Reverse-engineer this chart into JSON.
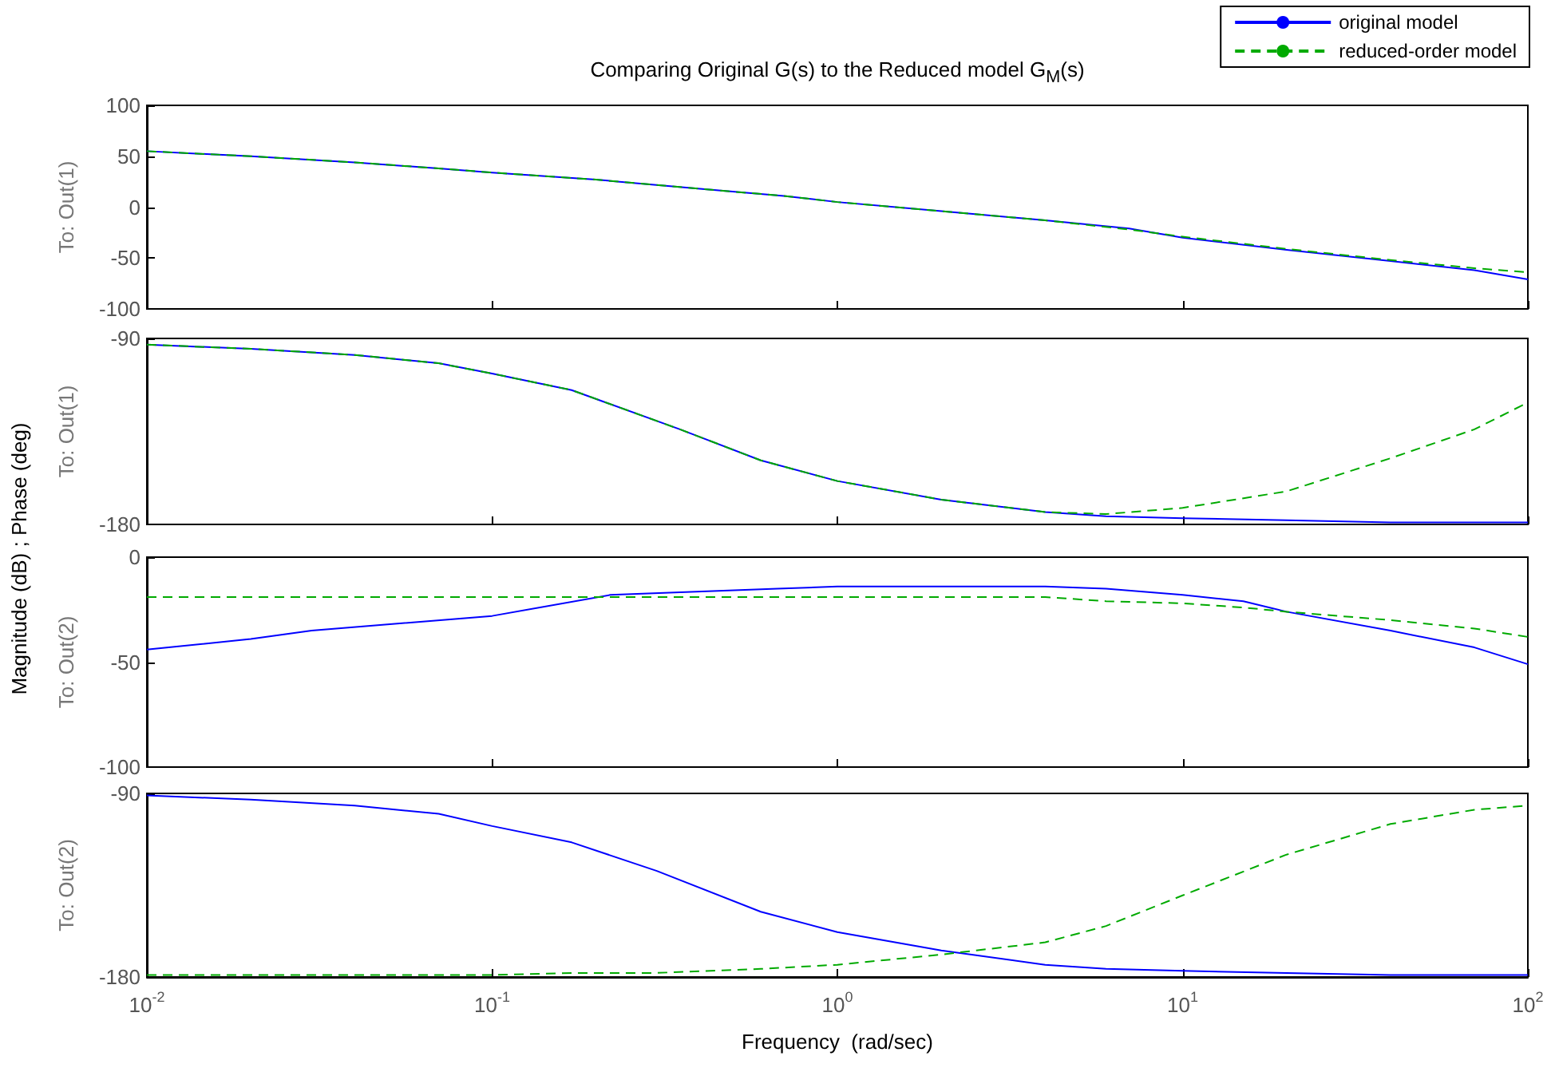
{
  "chart_data": [
    {
      "type": "line",
      "title": "Comparing Original G(s) to the Reduced model G$_{M}$(s)",
      "ylabel": "To: Out(1)",
      "annotations": [
        "Magnitude (dB) ; Phase (deg)"
      ],
      "log": "x",
      "grid": false,
      "legend": "top right",
      "tick_labels": "y",
      "marker": "none",
      "xlim": [
        0.01,
        100
      ],
      "ylim": [
        -100,
        100
      ],
      "yticks": [
        -100,
        -50,
        0,
        50,
        100
      ],
      "series": [
        {
          "name": "original model",
          "color": "#0000ff",
          "line_style": "solid",
          "x": [
            0.01,
            0.02,
            0.04,
            0.07,
            0.1,
            0.2,
            0.4,
            0.7,
            1,
            2,
            4,
            7,
            10,
            20,
            40,
            70,
            100
          ],
          "values": [
            55,
            50,
            44,
            38,
            34,
            27,
            18,
            11,
            5,
            -4,
            -13,
            -21,
            -30,
            -42,
            -53,
            -62,
            -71
          ]
        },
        {
          "name": "reduced-order model",
          "color": "#00aa00",
          "line_style": "dashed",
          "x": [
            0.01,
            0.02,
            0.04,
            0.07,
            0.1,
            0.2,
            0.4,
            0.7,
            1,
            2,
            4,
            7,
            10,
            20,
            40,
            70,
            100
          ],
          "values": [
            55,
            50,
            44,
            38,
            34,
            27,
            18,
            11,
            5,
            -4,
            -13,
            -22,
            -29,
            -41,
            -52,
            -60,
            -64
          ]
        }
      ]
    },
    {
      "type": "line",
      "ylabel": "To: Out(1)",
      "log": "x",
      "grid": false,
      "tick_labels": "y",
      "marker": "none",
      "xlim": [
        0.01,
        100
      ],
      "ylim": [
        -180,
        -90
      ],
      "yticks": [
        -180,
        -90
      ],
      "series": [
        {
          "color": "#0000ff",
          "line_style": "solid",
          "x": [
            0.01,
            0.02,
            0.04,
            0.07,
            0.1,
            0.17,
            0.35,
            0.6,
            1,
            2,
            4,
            6,
            10,
            20,
            40,
            70,
            100
          ],
          "values": [
            -93,
            -95,
            -98,
            -102,
            -107,
            -115,
            -134,
            -149,
            -159,
            -168,
            -174,
            -176,
            -177,
            -178,
            -179,
            -179,
            -179
          ]
        },
        {
          "color": "#00aa00",
          "line_style": "dashed",
          "x": [
            0.01,
            0.02,
            0.04,
            0.07,
            0.1,
            0.17,
            0.35,
            0.6,
            1,
            2,
            4,
            6,
            10,
            20,
            40,
            70,
            100
          ],
          "values": [
            -93,
            -95,
            -98,
            -102,
            -107,
            -115,
            -134,
            -149,
            -159,
            -168,
            -174,
            -175,
            -172,
            -164,
            -148,
            -134,
            -121
          ]
        }
      ]
    },
    {
      "type": "line",
      "ylabel": "To: Out(2)",
      "log": "x",
      "grid": false,
      "tick_labels": "y",
      "marker": "none",
      "xlim": [
        0.01,
        100
      ],
      "ylim": [
        -100,
        0
      ],
      "yticks": [
        -100,
        -50,
        0
      ],
      "series": [
        {
          "color": "#0000ff",
          "line_style": "solid",
          "x": [
            0.01,
            0.02,
            0.03,
            0.1,
            0.22,
            0.67,
            1,
            4,
            6,
            10,
            15,
            20,
            40,
            70,
            100
          ],
          "values": [
            -44,
            -39,
            -35,
            -28,
            -18,
            -15,
            -14,
            -14,
            -15,
            -18,
            -21,
            -26,
            -35,
            -43,
            -51
          ]
        },
        {
          "color": "#00aa00",
          "line_style": "dashed",
          "x": [
            0.01,
            0.02,
            0.03,
            0.1,
            0.22,
            0.67,
            1,
            4,
            6,
            10,
            15,
            20,
            40,
            70,
            100
          ],
          "values": [
            -19,
            -19,
            -19,
            -19,
            -19,
            -19,
            -19,
            -19,
            -21,
            -22,
            -24,
            -26,
            -30,
            -34,
            -38
          ]
        }
      ]
    },
    {
      "type": "line",
      "ylabel": "To: Out(2)",
      "xlabel": "Frequency  (rad/sec)",
      "log": "x",
      "grid": false,
      "marker": "none",
      "xlim": [
        0.01,
        100
      ],
      "ylim": [
        -180,
        -90
      ],
      "yticks": [
        -180,
        -90
      ],
      "xticks": [
        {
          "value": 0.01,
          "label": "10$^{-2}$"
        },
        {
          "value": 0.1,
          "label": "10$^{-1}$"
        },
        {
          "value": 1,
          "label": "10$^{0}$"
        },
        {
          "value": 10,
          "label": "10$^{1}$"
        },
        {
          "value": 100,
          "label": "10$^{2}$"
        }
      ],
      "series": [
        {
          "color": "#0000ff",
          "line_style": "solid",
          "x": [
            0.01,
            0.02,
            0.04,
            0.07,
            0.1,
            0.17,
            0.3,
            0.6,
            1,
            2,
            4,
            6,
            10,
            20,
            40,
            70,
            100
          ],
          "values": [
            -91,
            -93,
            -96,
            -100,
            -106,
            -114,
            -128,
            -148,
            -158,
            -167,
            -174,
            -176,
            -177,
            -178,
            -179,
            -179,
            -179
          ]
        },
        {
          "color": "#00aa00",
          "line_style": "dashed",
          "x": [
            0.01,
            0.02,
            0.04,
            0.07,
            0.1,
            0.17,
            0.3,
            0.6,
            1,
            2,
            4,
            6,
            10,
            20,
            40,
            70,
            100
          ],
          "values": [
            -179,
            -179,
            -179,
            -179,
            -179,
            -178,
            -178,
            -176,
            -174,
            -169,
            -163,
            -155,
            -140,
            -120,
            -105,
            -98,
            -96
          ]
        }
      ]
    }
  ]
}
